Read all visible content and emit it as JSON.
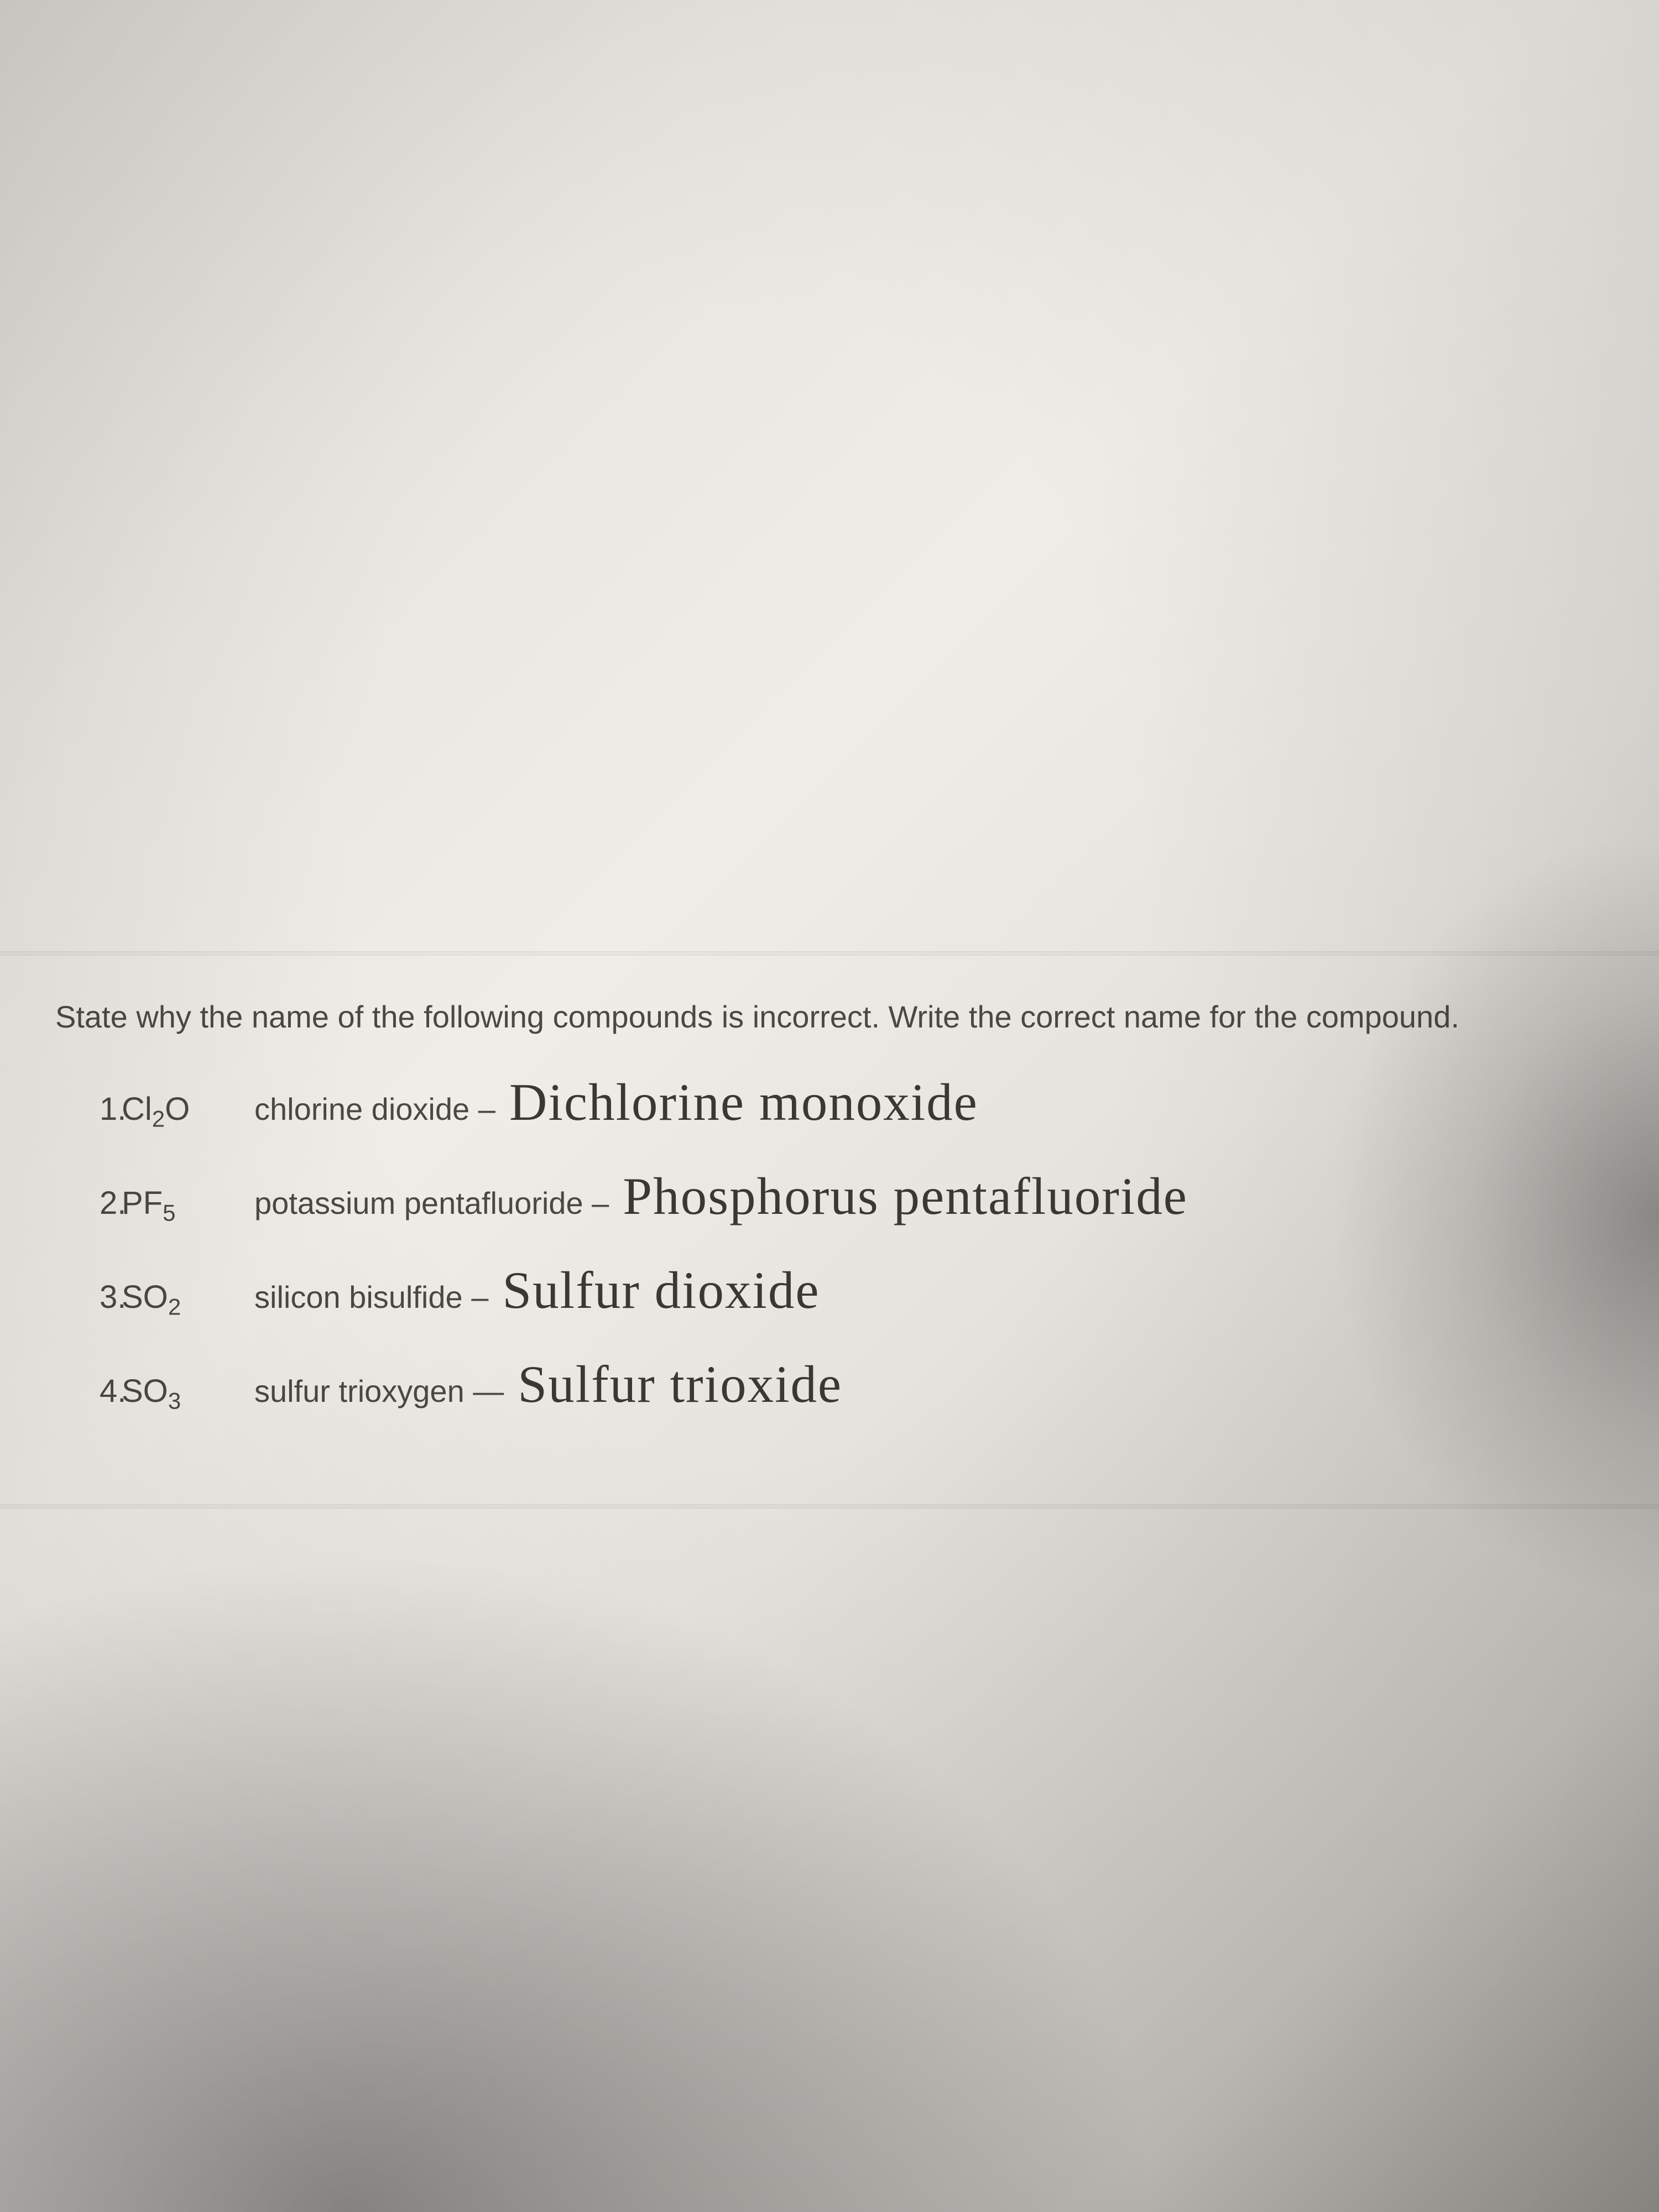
{
  "instructions": "State why the name of the following compounds is incorrect. Write the correct name for the compound.",
  "items": [
    {
      "num": "1.",
      "formula_base": "Cl",
      "formula_sub": "2",
      "formula_suffix": "O",
      "given_name": "chlorine dioxide –",
      "handwritten": "Dichlorine monoxide"
    },
    {
      "num": "2.",
      "formula_base": "PF",
      "formula_sub": "5",
      "formula_suffix": "",
      "given_name": "potassium pentafluoride –",
      "handwritten": "Phosphorus pentafluoride"
    },
    {
      "num": "3.",
      "formula_base": "SO",
      "formula_sub": "2",
      "formula_suffix": "",
      "given_name": "silicon bisulfide –",
      "handwritten": "Sulfur dioxide"
    },
    {
      "num": "4.",
      "formula_base": "SO",
      "formula_sub": "3",
      "formula_suffix": "",
      "given_name": "sulfur trioxygen —",
      "handwritten": "Sulfur trioxide"
    }
  ],
  "colors": {
    "text_printed": "#4a4845",
    "text_handwritten": "#3a3835",
    "paper_light": "#f0ede8",
    "paper_dark": "#c8c5c0"
  },
  "typography": {
    "printed_fontsize": 56,
    "handwritten_fontsize": 95,
    "printed_family": "Arial",
    "handwritten_family": "cursive"
  }
}
